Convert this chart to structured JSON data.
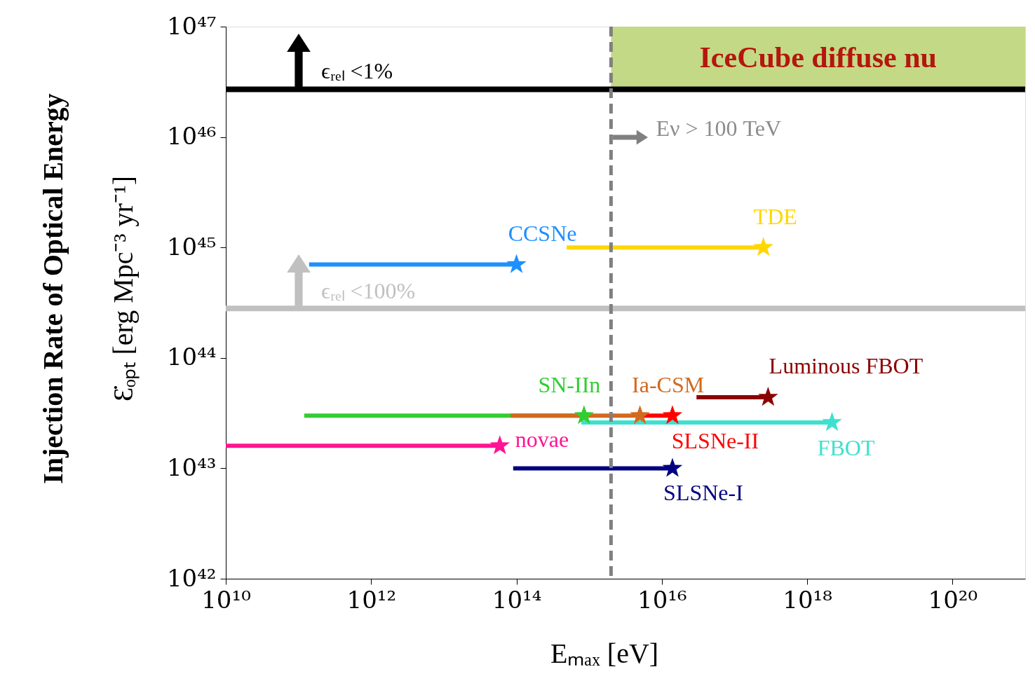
{
  "chart_data": {
    "type": "line",
    "xlabel": "Eₘₐₓ [eV]",
    "ylabel": "Injection Rate of Optical Energy\nƐ̇ₒₚₜ [erg Mpc⁻³ yr⁻¹]",
    "xlim": [
      10000000000.0,
      1e+21
    ],
    "ylim": [
      1e+42,
      1e+47
    ],
    "log": "xy",
    "xticks": [
      {
        "value": 10000000000.0,
        "label": "10¹⁰"
      },
      {
        "value": 1000000000000.0,
        "label": "10¹²"
      },
      {
        "value": 100000000000000.0,
        "label": "10¹⁴"
      },
      {
        "value": 1e+16,
        "label": "10¹⁶"
      },
      {
        "value": 1e+18,
        "label": "10¹⁸"
      },
      {
        "value": 1e+20,
        "label": "10²⁰"
      }
    ],
    "yticks": [
      {
        "value": 1e+42,
        "label": "10⁴²"
      },
      {
        "value": 1e+43,
        "label": "10⁴³"
      },
      {
        "value": 1e+44,
        "label": "10⁴⁴"
      },
      {
        "value": 1e+45,
        "label": "10⁴⁵"
      },
      {
        "value": 1e+46,
        "label": "10⁴⁶"
      },
      {
        "value": 1e+47,
        "label": "10⁴⁷"
      }
    ],
    "grid": false,
    "series": [
      {
        "name": "CCSNe",
        "color": "#1e90ff",
        "x": [
          140000000000.0,
          100000000000000.0
        ],
        "values": [
          7e+44,
          7e+44
        ]
      },
      {
        "name": "TDE",
        "color": "#ffd700",
        "x": [
          490000000000000.0,
          2.5e+17
        ],
        "values": [
          1e+45,
          1e+45
        ]
      },
      {
        "name": "SN-IIn",
        "color": "#32cd32",
        "x": [
          120000000000.0,
          850000000000000.0
        ],
        "values": [
          3e+43,
          3e+43
        ]
      },
      {
        "name": "Ia-CSM",
        "color": "#d2691e",
        "x": [
          83000000000000.0,
          5000000000000000.0
        ],
        "values": [
          3e+43,
          3e+43
        ]
      },
      {
        "name": "SLSNe-II",
        "color": "#ff0000",
        "x": [
          5000000000000000.0,
          1.4e+16
        ],
        "values": [
          3e+43,
          3e+43
        ]
      },
      {
        "name": "Luminous FBOT",
        "color": "#8b0000",
        "x": [
          3e+16,
          2.9e+17
        ],
        "values": [
          4.4e+43,
          4.4e+43
        ]
      },
      {
        "name": "FBOT",
        "color": "#40e0d0",
        "x": [
          780000000000000.0,
          2.2e+18
        ],
        "values": [
          2.6e+43,
          2.6e+43
        ]
      },
      {
        "name": "novae",
        "color": "#ff1493",
        "x": [
          10000000000.0,
          59000000000000.0
        ],
        "values": [
          1.6e+43,
          1.6e+43
        ]
      },
      {
        "name": "SLSNe-I",
        "color": "#000080",
        "x": [
          90000000000000.0,
          1.4e+16
        ],
        "values": [
          1e+43,
          1e+43
        ]
      },
      {
        "type": "scatter",
        "marker": "star",
        "x": [
          100000000000000.0,
          2.5e+17,
          850000000000000.0,
          5000000000000000.0,
          1.4e+16,
          2.9e+17,
          2.2e+18,
          59000000000000.0,
          1.4e+16
        ],
        "values": [
          7e+44,
          1e+45,
          3e+43,
          3e+43,
          3e+43,
          4.4e+43,
          2.6e+43,
          1.6e+43,
          1e+43
        ],
        "colors": [
          "#1e90ff",
          "#ffd700",
          "#32cd32",
          "#d2691e",
          "#ff0000",
          "#8b0000",
          "#40e0d0",
          "#ff1493",
          "#000080"
        ]
      }
    ],
    "ref_lines": [
      {
        "axis": "y",
        "value": 2.7e+46,
        "color": "#000000",
        "line_style": "solid"
      },
      {
        "axis": "y",
        "value": 2.8e+44,
        "color": "#c0c0c0",
        "line_style": "solid"
      },
      {
        "axis": "x",
        "value": 2000000000000000.0,
        "color": "#808080",
        "line_style": "dashed"
      }
    ],
    "bands": [
      {
        "axis": "x",
        "from": 2000000000000000.0,
        "to": 1e+21,
        "label": "IceCube diffuse nu",
        "color": "#c4d985"
      }
    ],
    "annotations": [
      "ϵᵣₑₗ <1%",
      "ϵᵣₑₗ <100%",
      {
        "text": "Eν > 100 TeV",
        "x": 2000000000000000.0,
        "y": 1e+46
      }
    ]
  }
}
